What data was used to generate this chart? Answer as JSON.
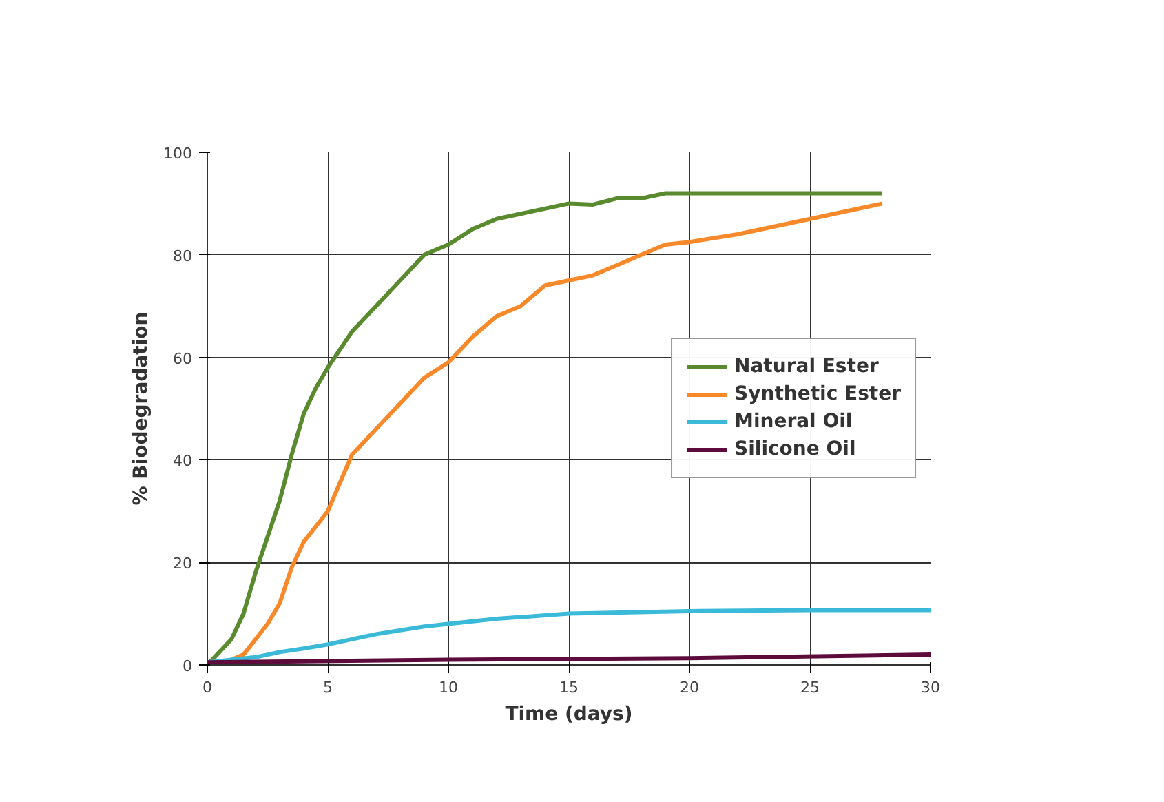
{
  "chart_data": {
    "type": "line",
    "xlabel": "Time (days)",
    "ylabel": "% Biodegradation",
    "xlim": [
      0,
      30
    ],
    "xticks": [
      0,
      5,
      10,
      15,
      20,
      25,
      30
    ],
    "ylim": [
      0,
      100
    ],
    "yticks": [
      0,
      20,
      40,
      60,
      80,
      100
    ],
    "grid": true,
    "legend": "right",
    "marker": "none",
    "line_style": "solid",
    "series": [
      {
        "name": "Natural Ester",
        "color": "#5a8a2e",
        "x": [
          0,
          0.5,
          1,
          1.5,
          2,
          2.5,
          3,
          3.5,
          4,
          4.5,
          5,
          6,
          7,
          8,
          9,
          9.5,
          10,
          11,
          12,
          13,
          14,
          15,
          16,
          17,
          18,
          19,
          20,
          22,
          25,
          28
        ],
        "values": [
          0,
          2.5,
          5,
          10,
          18,
          25,
          32,
          41,
          49,
          54,
          58,
          65,
          70,
          75,
          80,
          81,
          82,
          85,
          87,
          88,
          89,
          90,
          89.8,
          91,
          91,
          92,
          92,
          92,
          92,
          92
        ]
      },
      {
        "name": "Synthetic Ester",
        "color": "#f7892b",
        "x": [
          0,
          1,
          1.5,
          2,
          2.5,
          3,
          3.5,
          4,
          4.5,
          5,
          6,
          7,
          8,
          9,
          10,
          11,
          12,
          13,
          14,
          15,
          16,
          17,
          18,
          19,
          20,
          22,
          25,
          28
        ],
        "values": [
          0,
          1,
          2,
          5,
          8,
          12,
          19,
          24,
          27,
          30,
          41,
          46,
          51,
          56,
          59,
          64,
          68,
          70,
          74,
          75,
          76,
          78,
          80,
          82,
          82.5,
          84,
          87,
          90
        ]
      },
      {
        "name": "Mineral Oil",
        "color": "#3bb9d8",
        "x": [
          0,
          1,
          2,
          3,
          4,
          5,
          7,
          9,
          10,
          12,
          15,
          20,
          25,
          30
        ],
        "values": [
          0.5,
          1,
          1.5,
          2.5,
          3.2,
          4,
          6,
          7.5,
          8,
          9,
          10,
          10.5,
          10.7,
          10.7
        ]
      },
      {
        "name": "Silicone Oil",
        "color": "#5c0b3a",
        "x": [
          0,
          10,
          20,
          30
        ],
        "values": [
          0.5,
          1,
          1.3,
          2
        ]
      }
    ]
  }
}
